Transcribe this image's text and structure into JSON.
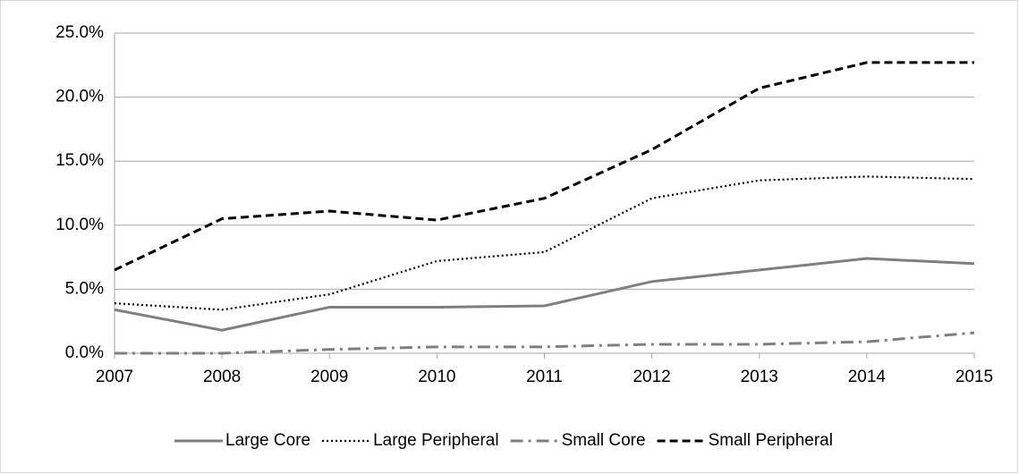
{
  "chart_data": {
    "type": "line",
    "categories": [
      "2007",
      "2008",
      "2009",
      "2010",
      "2011",
      "2012",
      "2013",
      "2014",
      "2015"
    ],
    "series": [
      {
        "name": "Large Core",
        "color": "#7f7f7f",
        "dash": "solid",
        "values": [
          3.4,
          1.8,
          3.6,
          3.6,
          3.7,
          5.6,
          6.5,
          7.4,
          7.0
        ]
      },
      {
        "name": "Large Peripheral",
        "color": "#000000",
        "dash": "dotted",
        "values": [
          3.9,
          3.4,
          4.6,
          7.2,
          7.9,
          12.1,
          13.5,
          13.8,
          13.6
        ]
      },
      {
        "name": "Small Core",
        "color": "#7f7f7f",
        "dash": "dashdot",
        "values": [
          0.0,
          0.0,
          0.3,
          0.5,
          0.5,
          0.7,
          0.7,
          0.9,
          1.6
        ]
      },
      {
        "name": "Small Peripheral",
        "color": "#000000",
        "dash": "dashed",
        "values": [
          6.5,
          10.5,
          11.1,
          10.4,
          12.1,
          15.9,
          20.7,
          22.7,
          22.7
        ]
      }
    ],
    "ylim": [
      0,
      25
    ],
    "yticks": [
      {
        "value": 0,
        "label": "0.0%"
      },
      {
        "value": 5,
        "label": "5.0%"
      },
      {
        "value": 10,
        "label": "10.0%"
      },
      {
        "value": 15,
        "label": "15.0%"
      },
      {
        "value": 20,
        "label": "20.0%"
      },
      {
        "value": 25,
        "label": "25.0%"
      }
    ],
    "grid": true,
    "legend": "bottom"
  }
}
